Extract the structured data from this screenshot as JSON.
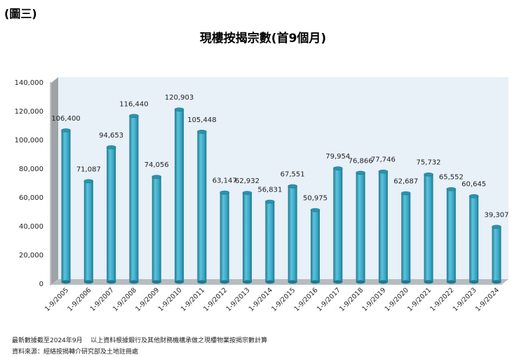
{
  "figure_tag": "(圖三)",
  "chart_data": {
    "type": "bar",
    "title": "現樓按揭宗數(首9個月)",
    "xlabel": "",
    "ylabel": "",
    "ylim": [
      0,
      140000
    ],
    "yticks": [
      "0",
      "20,000",
      "40,000",
      "60,000",
      "80,000",
      "100,000",
      "120,000",
      "140,000"
    ],
    "grid": false,
    "categories": [
      "1-9/2005",
      "1-9/2006",
      "1-9/2007",
      "1-9/2008",
      "1-9/2009",
      "1-9/2010",
      "1-9/2011",
      "1-9/2012",
      "1-9/2013",
      "1-9/2014",
      "1-9/2015",
      "1-9/2016",
      "1-9/2017",
      "1-9/2018",
      "1-9/2019",
      "1-9/2020",
      "1-9/2021",
      "1-9/2022",
      "1-9/2023",
      "1-9/2024"
    ],
    "values": [
      106400,
      71087,
      94653,
      116440,
      74056,
      120903,
      105448,
      63147,
      62932,
      56831,
      67551,
      50975,
      79954,
      76866,
      77746,
      62687,
      75732,
      65552,
      60645,
      39307
    ],
    "data_labels": [
      "106,400",
      "71,087",
      "94,653",
      "116,440",
      "74,056",
      "120,903",
      "105,448",
      "63,147",
      "62,932",
      "56,831",
      "67,551",
      "50,975",
      "79,954",
      "76,866",
      "77,746",
      "62,687",
      "75,732",
      "65,552",
      "60,645",
      "39,307"
    ],
    "colors": {
      "bar": "#3aa9c6",
      "bar_dark": "#1f7890",
      "wall": "#e8f0f8",
      "side": "#9ea3a8"
    }
  },
  "notes": [
    "最新數據截至2024年9月    以上資料根據銀行及其他財務機構承做之現樓物業按揭宗數計算",
    "資料來源：經絡按揭轉介研究部及土地註冊處"
  ]
}
